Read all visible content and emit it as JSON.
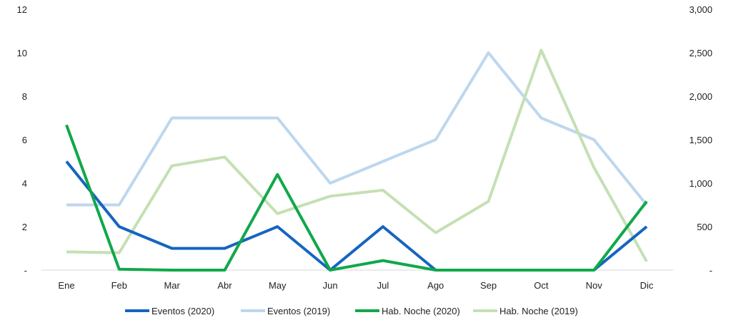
{
  "chart_data": {
    "type": "line",
    "title": "",
    "xlabel": "",
    "ylabel": "",
    "y2label": "",
    "categories": [
      "Ene",
      "Feb",
      "Mar",
      "Abr",
      "May",
      "Jun",
      "Jul",
      "Ago",
      "Sep",
      "Oct",
      "Nov",
      "Dic"
    ],
    "y_axis": {
      "range": [
        0,
        12
      ],
      "ticks": [
        0,
        2,
        4,
        6,
        8,
        10,
        12
      ],
      "tick_labels": [
        "-",
        "2",
        "4",
        "6",
        "8",
        "10",
        "12"
      ]
    },
    "y2_axis": {
      "range": [
        0,
        3000
      ],
      "ticks": [
        0,
        500,
        1000,
        1500,
        2000,
        2500,
        3000
      ],
      "tick_labels": [
        "-",
        "500",
        "1,000",
        "1,500",
        "2,000",
        "2,500",
        "3,000"
      ]
    },
    "grid": false,
    "legend": {
      "position": "bottom"
    },
    "series": [
      {
        "name": "Eventos (2020)",
        "axis": "left",
        "color": "#1565c0",
        "values": [
          5,
          2,
          1,
          1,
          2,
          0,
          2,
          0,
          0,
          0,
          0,
          2
        ]
      },
      {
        "name": "Eventos (2019)",
        "axis": "left",
        "color": "#bdd7ee",
        "values": [
          3,
          3,
          7,
          7,
          7,
          4,
          5,
          6,
          10,
          7,
          6,
          3
        ]
      },
      {
        "name": "Hab. Noche (2020)",
        "axis": "right",
        "color": "#10a84a",
        "values": [
          1670,
          10,
          0,
          0,
          1100,
          0,
          110,
          0,
          0,
          0,
          0,
          790
        ]
      },
      {
        "name": "Hab. Noche (2019)",
        "axis": "right",
        "color": "#c5e0b4",
        "values": [
          210,
          200,
          1200,
          1300,
          650,
          850,
          920,
          430,
          790,
          2530,
          1180,
          100
        ]
      }
    ]
  }
}
